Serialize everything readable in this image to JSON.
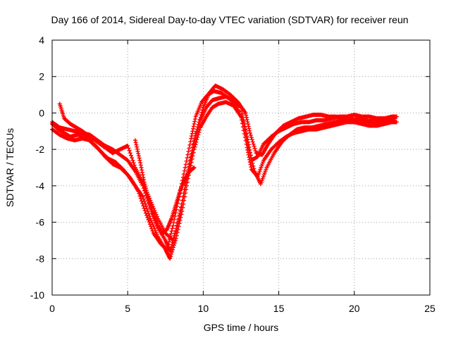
{
  "chart_data": {
    "type": "scatter",
    "title": "Day 166 of 2014, Sidereal Day-to-day VTEC variation (SDTVAR) for receiver reun",
    "xlabel": "GPS time / hours",
    "ylabel": "SDTVAR / TECUs",
    "xlim": [
      0,
      25
    ],
    "ylim": [
      -10,
      4
    ],
    "xticks": [
      0,
      5,
      10,
      15,
      20,
      25
    ],
    "yticks": [
      -10,
      -8,
      -6,
      -4,
      -2,
      0,
      2,
      4
    ],
    "grid": true,
    "marker": "plus",
    "color": "#ff0000",
    "series": [
      {
        "name": "trace-1",
        "x": [
          0.0,
          0.5,
          1.0,
          1.5,
          2.0,
          2.5,
          3.0,
          3.5,
          4.0,
          4.5,
          5.0,
          5.5,
          6.0,
          6.5,
          7.0,
          7.5,
          7.8,
          8.2,
          8.6,
          9.0,
          9.4,
          9.8,
          10.2,
          10.6,
          11.0,
          11.5,
          12.0,
          12.5,
          12.9,
          13.2,
          13.6,
          14.0,
          14.5,
          15.0,
          15.5,
          16.0,
          16.5,
          17.0,
          17.5,
          18.0,
          18.5,
          19.0,
          19.5,
          20.0,
          20.5,
          21.0,
          21.5,
          22.0,
          22.5,
          22.8
        ],
        "y": [
          -0.5,
          -0.8,
          -0.9,
          -1.0,
          -1.1,
          -1.2,
          -1.5,
          -1.8,
          -2.0,
          -2.3,
          -2.6,
          -3.2,
          -4.0,
          -5.2,
          -6.3,
          -7.0,
          -7.6,
          -6.5,
          -5.0,
          -3.2,
          -1.5,
          -0.4,
          0.3,
          0.7,
          0.8,
          0.9,
          0.7,
          0.3,
          -1.3,
          -2.6,
          -2.4,
          -1.7,
          -1.3,
          -1.0,
          -0.8,
          -0.6,
          -0.5,
          -0.5,
          -0.4,
          -0.4,
          -0.3,
          -0.2,
          -0.2,
          -0.1,
          -0.2,
          -0.2,
          -0.3,
          -0.3,
          -0.2,
          -0.2
        ]
      },
      {
        "name": "trace-2",
        "x": [
          0.0,
          0.5,
          1.0,
          1.5,
          2.0,
          2.5,
          3.0,
          3.5,
          4.0,
          4.5,
          5.0,
          5.5,
          6.0,
          6.5,
          7.0,
          7.5,
          7.8,
          8.2,
          8.6,
          9.0,
          9.4,
          9.8,
          10.2,
          10.6,
          11.0,
          11.5,
          12.0,
          12.5,
          12.9,
          13.2,
          13.6,
          14.0,
          14.5,
          15.0,
          15.5,
          16.0,
          16.5,
          17.0,
          17.5,
          18.0,
          18.5,
          19.0,
          19.5,
          20.0,
          20.5,
          21.0,
          21.5,
          22.0,
          22.5,
          22.8
        ],
        "y": [
          -0.9,
          -1.2,
          -1.4,
          -1.5,
          -1.4,
          -1.5,
          -1.9,
          -2.4,
          -2.8,
          -3.0,
          -3.4,
          -4.0,
          -4.6,
          -5.8,
          -6.8,
          -7.5,
          -8.0,
          -6.9,
          -5.4,
          -3.6,
          -2.0,
          -0.8,
          -0.2,
          0.3,
          0.5,
          0.6,
          0.4,
          -0.2,
          -1.9,
          -3.1,
          -3.5,
          -2.6,
          -2.0,
          -1.6,
          -1.3,
          -1.1,
          -1.0,
          -0.9,
          -0.9,
          -0.8,
          -0.7,
          -0.6,
          -0.5,
          -0.5,
          -0.6,
          -0.7,
          -0.7,
          -0.6,
          -0.5,
          -0.5
        ]
      },
      {
        "name": "trace-3",
        "x": [
          0.5,
          0.8,
          1.2,
          1.6,
          2.0,
          2.5,
          3.0,
          3.5,
          4.0,
          4.5,
          5.0,
          5.5,
          6.0,
          6.5,
          7.0,
          7.5,
          8.0,
          8.4,
          8.8,
          9.2,
          9.6,
          10.0,
          10.4,
          10.8,
          11.3,
          11.8,
          12.3,
          12.8,
          13.1,
          13.5,
          13.9,
          14.3,
          14.8,
          15.3,
          15.8,
          16.3,
          16.8,
          17.3,
          17.8,
          18.3,
          18.8,
          19.3,
          19.8,
          20.3,
          20.8,
          21.3,
          21.8,
          22.3,
          22.7
        ],
        "y": [
          0.5,
          -0.3,
          -0.6,
          -0.8,
          -1.0,
          -1.3,
          -1.6,
          -1.9,
          -2.2,
          -2.0,
          -1.8,
          -3.0,
          -3.8,
          -4.8,
          -5.8,
          -6.6,
          -7.0,
          -5.8,
          -4.0,
          -2.4,
          -0.9,
          0.3,
          1.1,
          1.5,
          1.3,
          1.0,
          0.6,
          0.0,
          -1.1,
          -2.2,
          -2.3,
          -1.7,
          -1.1,
          -0.7,
          -0.5,
          -0.3,
          -0.2,
          -0.1,
          -0.1,
          -0.2,
          -0.2,
          -0.3,
          -0.4,
          -0.3,
          -0.4,
          -0.6,
          -0.5,
          -0.4,
          -0.3
        ]
      },
      {
        "name": "trace-4",
        "x": [
          0.0,
          0.4,
          0.8,
          1.2,
          1.7,
          2.2,
          2.7,
          3.2,
          3.7,
          4.2,
          4.7,
          5.2,
          5.7,
          6.2,
          6.7,
          7.2,
          7.6,
          8.0,
          8.4,
          8.8,
          9.2,
          9.5,
          9.9,
          10.3,
          10.7,
          11.2,
          11.7,
          12.2,
          12.7,
          13.0,
          13.4,
          13.8,
          14.2,
          14.7,
          15.2,
          15.7,
          16.2,
          16.7,
          17.2,
          17.7,
          18.2,
          18.7,
          19.2,
          19.7,
          20.2,
          20.7,
          21.2,
          21.7,
          22.2,
          22.6
        ],
        "y": [
          -0.6,
          -0.9,
          -1.1,
          -1.3,
          -1.2,
          -1.3,
          -1.7,
          -2.1,
          -2.5,
          -2.7,
          -3.1,
          -3.6,
          -4.3,
          -5.5,
          -6.6,
          -7.2,
          -7.5,
          -6.2,
          -4.6,
          -3.0,
          -1.4,
          -0.2,
          0.6,
          1.0,
          1.2,
          1.1,
          0.8,
          0.4,
          -0.6,
          -1.9,
          -3.2,
          -3.9,
          -3.0,
          -2.2,
          -1.6,
          -1.2,
          -0.9,
          -0.8,
          -0.8,
          -0.7,
          -0.6,
          -0.5,
          -0.4,
          -0.3,
          -0.4,
          -0.5,
          -0.4,
          -0.4,
          -0.3,
          -0.3
        ]
      },
      {
        "name": "trace-5",
        "x": [
          5.5,
          5.8,
          6.1,
          6.4,
          6.7,
          7.0,
          7.3,
          7.6,
          7.9,
          8.2,
          8.5,
          8.8,
          9.1,
          9.4
        ],
        "y": [
          -1.5,
          -2.6,
          -3.8,
          -4.8,
          -5.6,
          -6.2,
          -6.6,
          -6.4,
          -5.8,
          -5.0,
          -4.2,
          -3.6,
          -3.2,
          -3.0
        ]
      }
    ]
  }
}
